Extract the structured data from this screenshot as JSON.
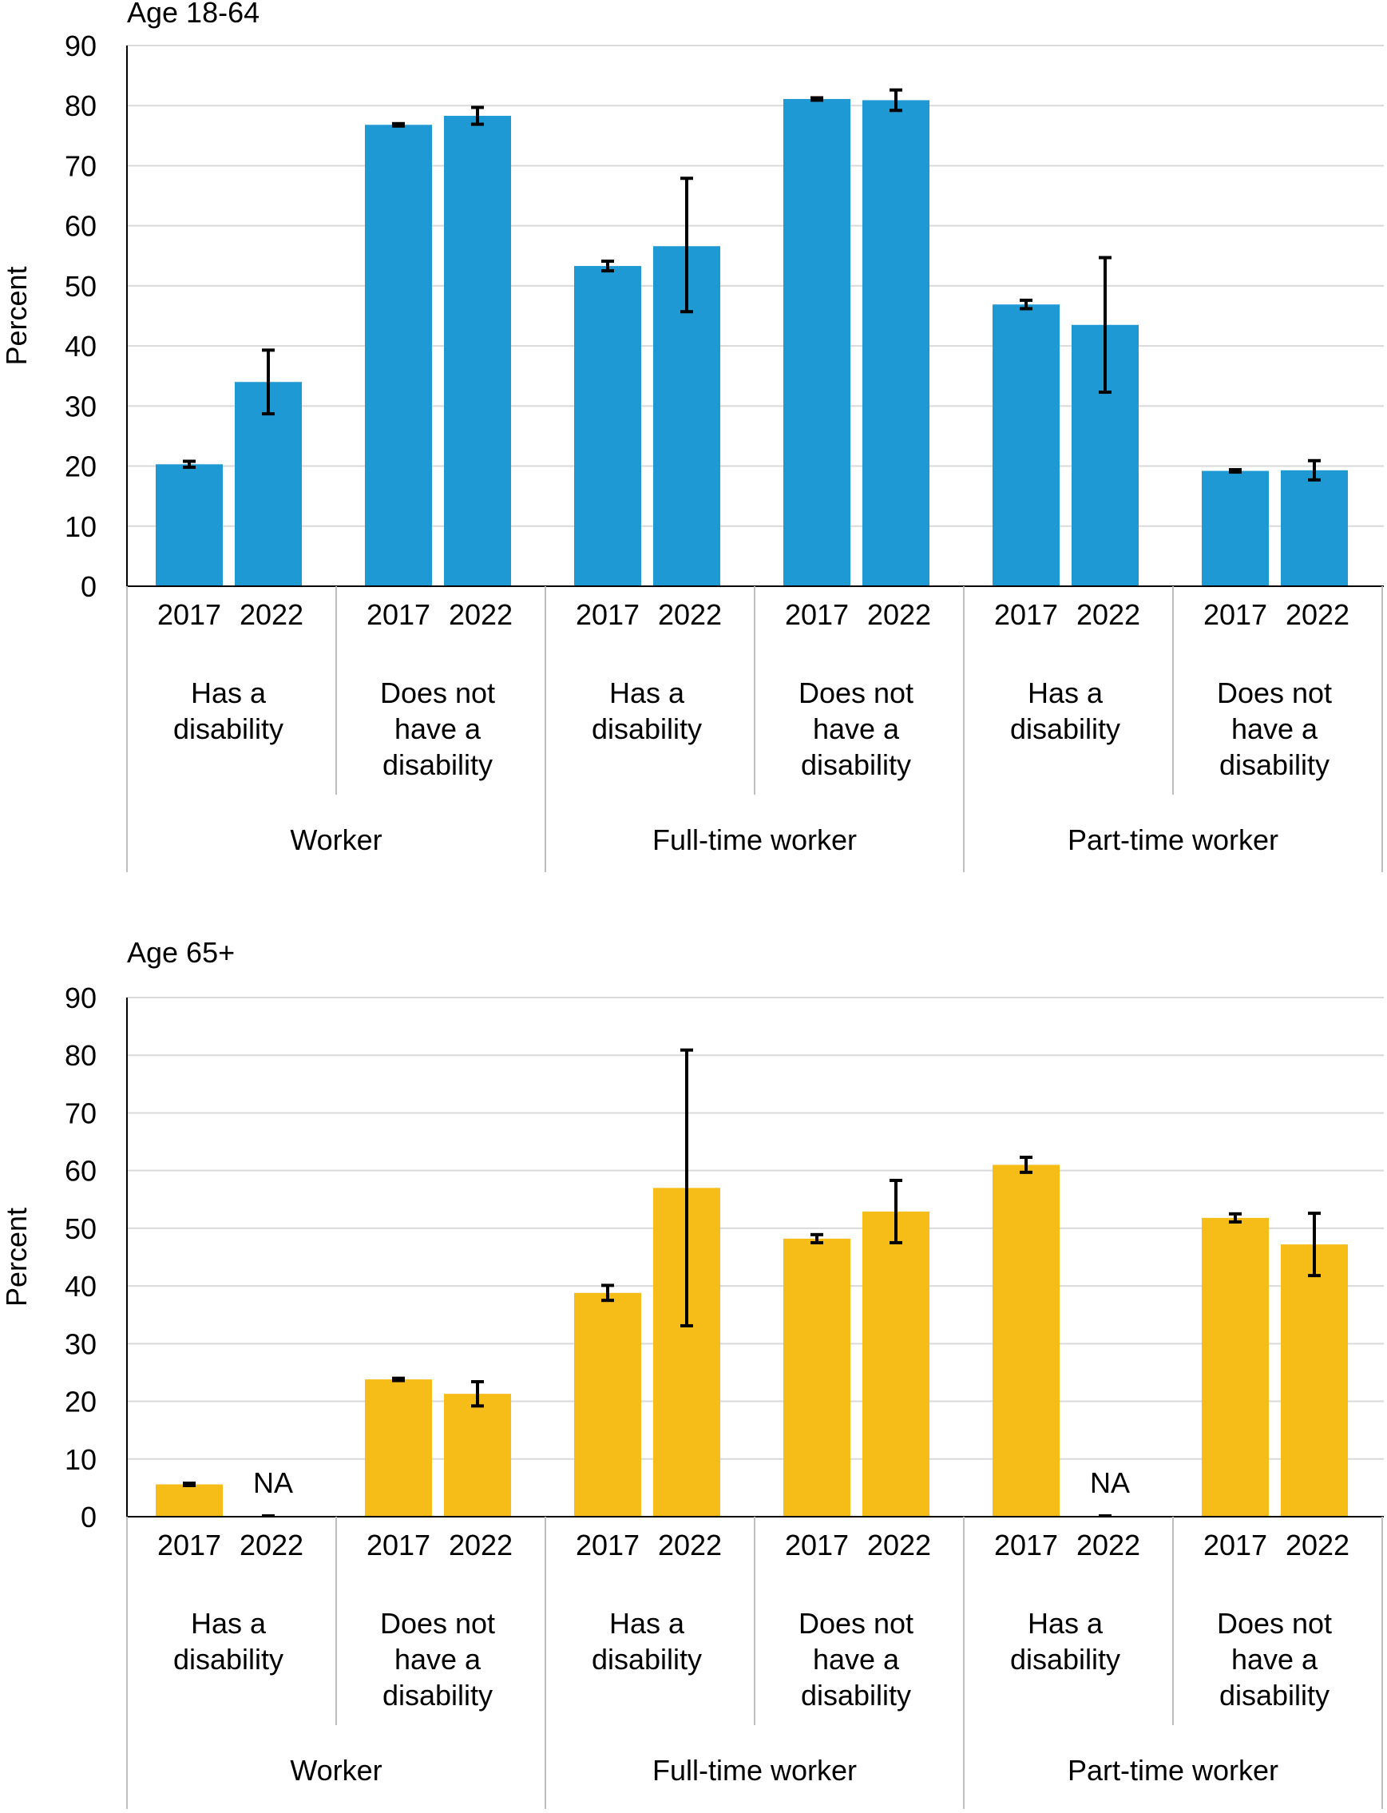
{
  "colors": {
    "panel_1": "#1f99d4",
    "panel_2": "#f6bc17",
    "grid": "#d9d9d9",
    "axis": "#000000",
    "divider": "#bfbfbf"
  },
  "chart_data": [
    {
      "type": "bar",
      "title": "Age 18-64",
      "ylabel": "Percent",
      "ylim": [
        0,
        90
      ],
      "yticks": [
        "0",
        "10",
        "20",
        "30",
        "40",
        "50",
        "60",
        "70",
        "80",
        "90"
      ],
      "top_categories": [
        "Worker",
        "Full-time worker",
        "Part-time worker"
      ],
      "sub_categories": [
        "Has a disability",
        "Does not have a disability"
      ],
      "years": [
        "2017",
        "2022"
      ],
      "bars": [
        {
          "value": 20.3,
          "err_low": 19.8,
          "err_high": 20.8
        },
        {
          "value": 34.0,
          "err_low": 28.7,
          "err_high": 39.3
        },
        {
          "value": 76.8,
          "err_low": 76.6,
          "err_high": 77.0
        },
        {
          "value": 78.3,
          "err_low": 76.9,
          "err_high": 79.7
        },
        {
          "value": 53.3,
          "err_low": 52.5,
          "err_high": 54.1
        },
        {
          "value": 56.6,
          "err_low": 45.7,
          "err_high": 67.9
        },
        {
          "value": 81.1,
          "err_low": 80.9,
          "err_high": 81.3
        },
        {
          "value": 80.9,
          "err_low": 79.2,
          "err_high": 82.6
        },
        {
          "value": 46.9,
          "err_low": 46.2,
          "err_high": 47.6
        },
        {
          "value": 43.5,
          "err_low": 32.3,
          "err_high": 54.7
        },
        {
          "value": 19.2,
          "err_low": 19.0,
          "err_high": 19.4
        },
        {
          "value": 19.3,
          "err_low": 17.7,
          "err_high": 20.9
        }
      ]
    },
    {
      "type": "bar",
      "title": "Age 65+",
      "ylabel": "Percent",
      "ylim": [
        0,
        90
      ],
      "yticks": [
        "0",
        "10",
        "20",
        "30",
        "40",
        "50",
        "60",
        "70",
        "80",
        "90"
      ],
      "top_categories": [
        "Worker",
        "Full-time worker",
        "Part-time worker"
      ],
      "sub_categories": [
        "Has a disability",
        "Does not have a disability"
      ],
      "years": [
        "2017",
        "2022"
      ],
      "bars": [
        {
          "value": 5.6,
          "err_low": 5.4,
          "err_high": 5.8
        },
        {
          "value": null,
          "na_label": "NA"
        },
        {
          "value": 23.8,
          "err_low": 23.6,
          "err_high": 24.0
        },
        {
          "value": 21.3,
          "err_low": 19.2,
          "err_high": 23.4
        },
        {
          "value": 38.8,
          "err_low": 37.5,
          "err_high": 40.1
        },
        {
          "value": 57.0,
          "err_low": 33.1,
          "err_high": 80.9
        },
        {
          "value": 48.2,
          "err_low": 47.5,
          "err_high": 48.9
        },
        {
          "value": 52.9,
          "err_low": 47.5,
          "err_high": 58.3
        },
        {
          "value": 61.0,
          "err_low": 59.7,
          "err_high": 62.3
        },
        {
          "value": null,
          "na_label": "NA"
        },
        {
          "value": 51.8,
          "err_low": 51.1,
          "err_high": 52.5
        },
        {
          "value": 47.2,
          "err_low": 41.8,
          "err_high": 52.6
        }
      ]
    }
  ]
}
